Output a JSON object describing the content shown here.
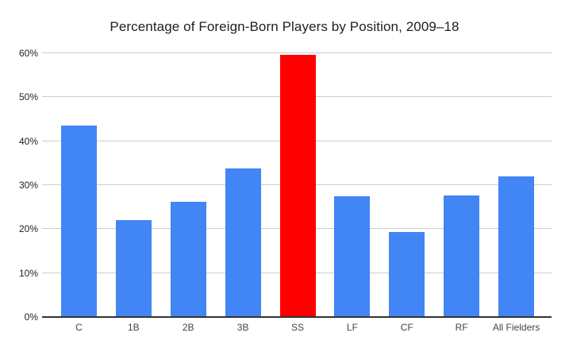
{
  "chart_data": {
    "type": "bar",
    "title": "Percentage of Foreign-Born Players by Position, 2009–18",
    "categories": [
      "C",
      "1B",
      "2B",
      "3B",
      "SS",
      "LF",
      "CF",
      "RF",
      "All Fielders"
    ],
    "values": [
      43.5,
      22,
      26.2,
      33.8,
      59.6,
      27.4,
      19.3,
      27.6,
      32
    ],
    "highlight_category": "SS",
    "highlight_index": 4,
    "colors": {
      "bar_default": "#4285f4",
      "bar_highlight": "#ff0000",
      "gridline": "#cccccc",
      "baseline": "#333333"
    },
    "xlabel": "",
    "ylabel": "",
    "ylim": [
      0,
      60
    ],
    "y_ticks": [
      "0%",
      "10%",
      "20%",
      "30%",
      "40%",
      "50%",
      "60%"
    ],
    "y_tick_values": [
      0,
      10,
      20,
      30,
      40,
      50,
      60
    ],
    "grid": true,
    "legend_position": "none"
  }
}
